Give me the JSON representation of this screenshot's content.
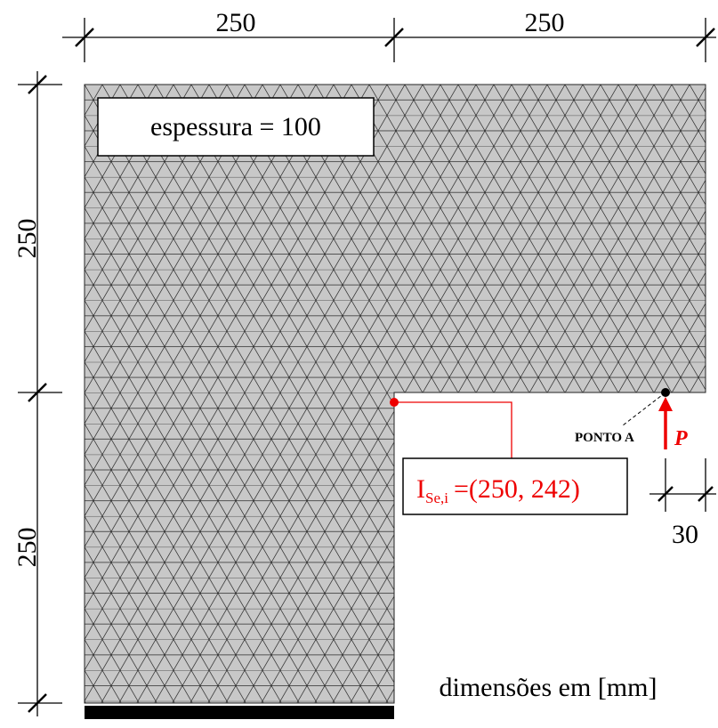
{
  "dimensions": {
    "top": [
      "250",
      "250"
    ],
    "left": [
      "250",
      "250"
    ],
    "offset": "30"
  },
  "thickness_label": "espessura = 100",
  "point_label": "PONTO A",
  "load_label": "P",
  "intersection": {
    "symbol": "I",
    "subscript": "Se,i",
    "coords": "=(250, 242)"
  },
  "units_note": "dimensões em [mm]"
}
